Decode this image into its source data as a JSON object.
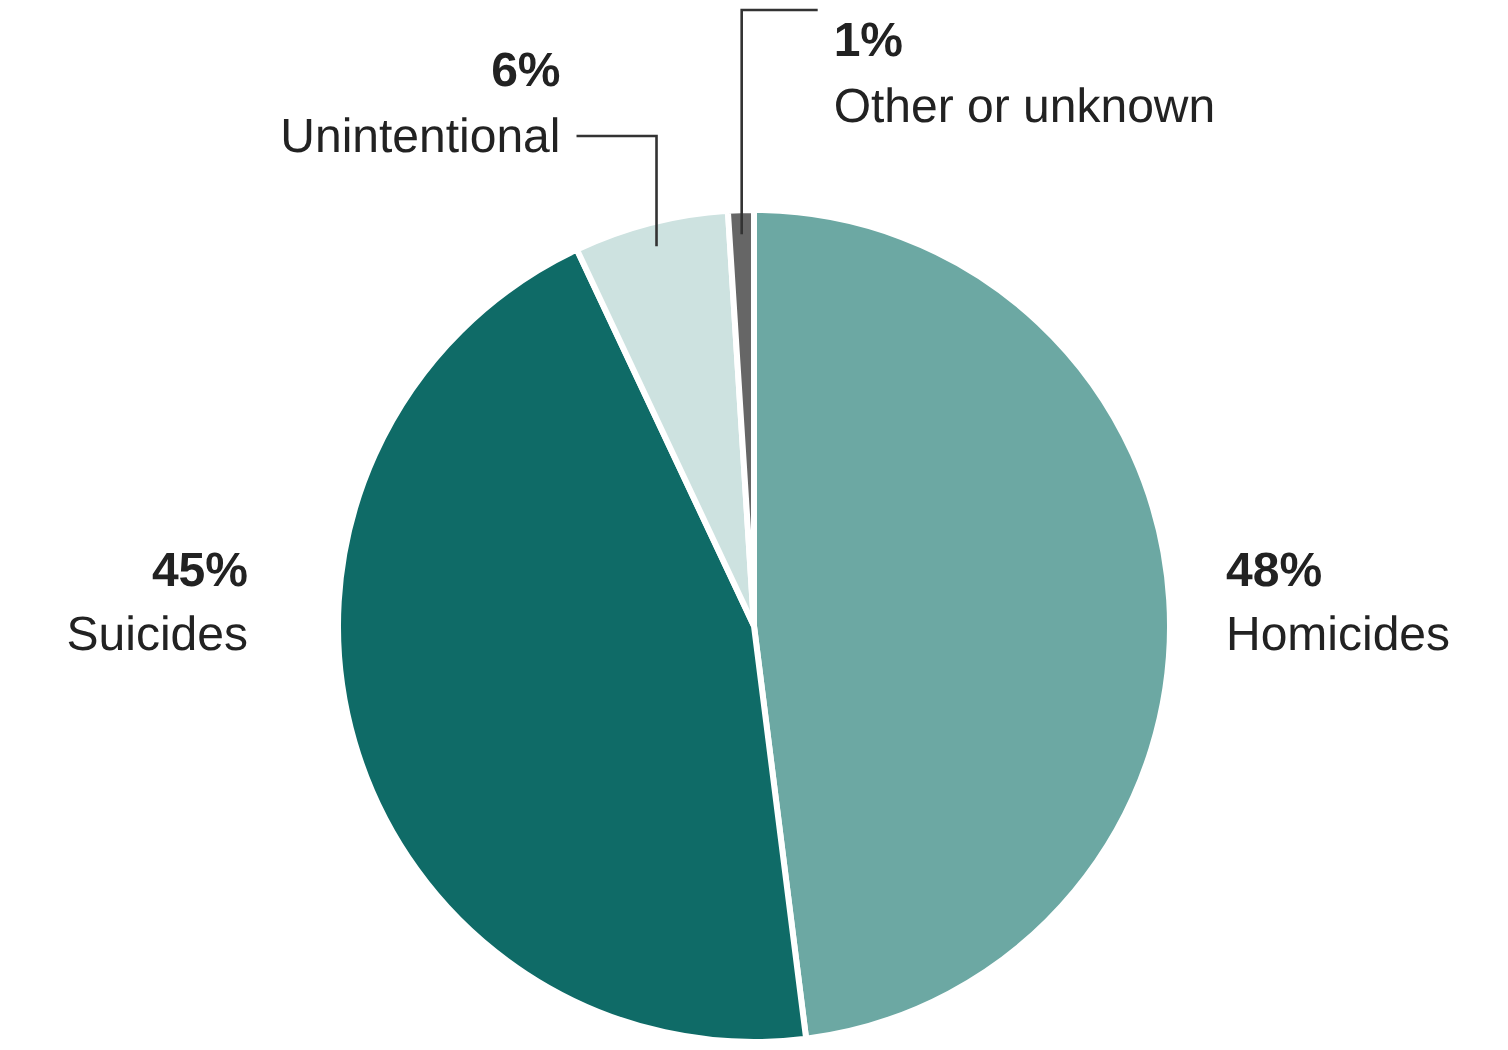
{
  "chart_data": {
    "type": "pie",
    "categories": [
      "Homicides",
      "Suicides",
      "Unintentional",
      "Other or unknown"
    ],
    "values": [
      48,
      45,
      6,
      1
    ],
    "colors": [
      "#6ca8a3",
      "#0f6b67",
      "#cde2e0",
      "#666666"
    ],
    "value_labels": [
      "48%",
      "45%",
      "6%",
      "1%"
    ]
  }
}
